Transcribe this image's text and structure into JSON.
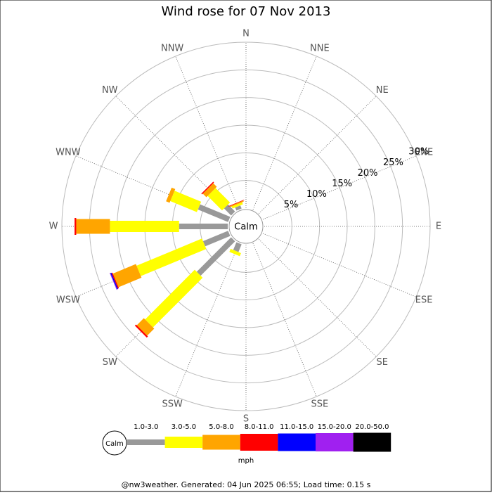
{
  "chart_data": {
    "type": "windrose",
    "title": "Wind rose for 07 Nov 2013",
    "directions": [
      "N",
      "NNE",
      "NE",
      "ENE",
      "E",
      "ESE",
      "SE",
      "SSE",
      "S",
      "SSW",
      "SW",
      "WSW",
      "W",
      "WNW",
      "NW",
      "NNW"
    ],
    "calm_label": "Calm",
    "rlim": [
      0,
      30
    ],
    "rticks": [
      {
        "value": 5,
        "label": "5%"
      },
      {
        "value": 10,
        "label": "10%"
      },
      {
        "value": 15,
        "label": "15%"
      },
      {
        "value": 20,
        "label": "20%"
      },
      {
        "value": 25,
        "label": "25%"
      },
      {
        "value": 30,
        "label": "30%"
      }
    ],
    "series": [
      {
        "name": "1.0-3.0",
        "color": "#999999",
        "values": [
          0,
          0,
          0,
          0,
          0,
          0,
          0,
          0,
          0,
          1.5,
          8.8,
          4.9,
          8.8,
          5.9,
          1.8,
          0.6
        ]
      },
      {
        "name": "3.0-5.0",
        "color": "#ffff00",
        "values": [
          0,
          0,
          0,
          0,
          0,
          0,
          0,
          0,
          0,
          0.6,
          12.7,
          12.8,
          12.5,
          5.2,
          3.7,
          0.4
        ]
      },
      {
        "name": "5.0-8.0",
        "color": "#ffa500",
        "values": [
          0,
          0,
          0,
          0,
          0,
          0,
          0,
          0,
          0,
          0,
          1.8,
          4.5,
          6.1,
          0.7,
          0.9,
          0.2
        ]
      },
      {
        "name": "8.0-11.0",
        "color": "#ff0000",
        "values": [
          0,
          0,
          0,
          0,
          0,
          0,
          0,
          0,
          0,
          0,
          0.3,
          0.2,
          0.3,
          0,
          0.2,
          0.1
        ]
      },
      {
        "name": "11.0-15.0",
        "color": "#0000ff",
        "values": [
          0,
          0,
          0,
          0,
          0,
          0,
          0,
          0,
          0,
          0,
          0,
          0.2,
          0,
          0,
          0,
          0
        ]
      },
      {
        "name": "15.0-20.0",
        "color": "#a020f0",
        "values": [
          0,
          0,
          0,
          0,
          0,
          0,
          0,
          0,
          0,
          0,
          0,
          0.1,
          0,
          0,
          0,
          0
        ]
      },
      {
        "name": "20.0-50.0",
        "color": "#000000",
        "values": [
          0,
          0,
          0,
          0,
          0,
          0,
          0,
          0,
          0,
          0,
          0,
          0,
          0,
          0,
          0,
          0
        ]
      }
    ],
    "unit_label": "mph",
    "footer": "@nw3weather. Generated: 04 Jun 2025 06:55; Load time: 0.15 s"
  }
}
